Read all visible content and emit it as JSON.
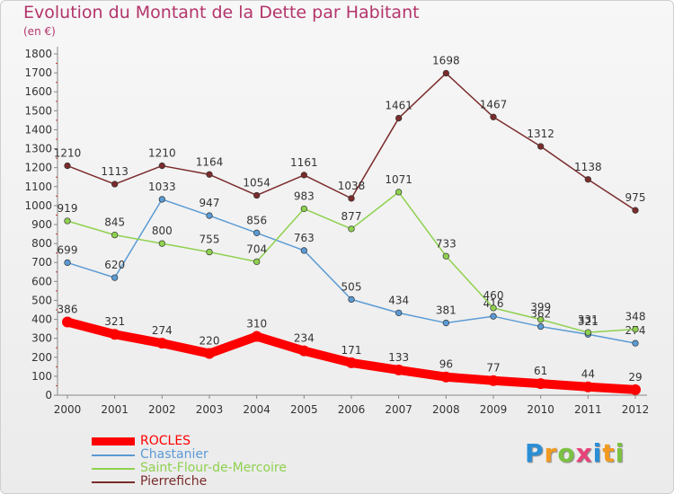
{
  "chart_data": {
    "type": "line",
    "title": "Evolution du Montant de la Dette par Habitant",
    "subtitle": "(en €)",
    "xlabel": "",
    "ylabel": "",
    "ylim": [
      0,
      1800
    ],
    "ytick_step": 100,
    "grid": false,
    "legend_position": "bottom-left",
    "x": [
      "2000",
      "2001",
      "2002",
      "2003",
      "2004",
      "2005",
      "2006",
      "2007",
      "2008",
      "2009",
      "2010",
      "2011",
      "2012"
    ],
    "series": [
      {
        "name": "ROCLES",
        "color": "#ff0000",
        "emphasis": true,
        "values": [
          386,
          321,
          274,
          220,
          310,
          234,
          171,
          133,
          96,
          77,
          61,
          44,
          29
        ]
      },
      {
        "name": "Chastanier",
        "color": "#5b9bd5",
        "values": [
          699,
          620,
          1033,
          947,
          856,
          763,
          505,
          434,
          381,
          416,
          362,
          321,
          274
        ]
      },
      {
        "name": "Saint-Flour-de-Mercoire",
        "color": "#8fd14f",
        "values": [
          919,
          845,
          800,
          755,
          704,
          983,
          877,
          1071,
          733,
          460,
          399,
          331,
          348
        ]
      },
      {
        "name": "Pierrefiche",
        "color": "#7b2b2b",
        "values": [
          1210,
          1113,
          1210,
          1164,
          1054,
          1161,
          1038,
          1461,
          1698,
          1467,
          1312,
          1138,
          975
        ]
      }
    ]
  },
  "logo": {
    "letters": [
      "P",
      "r",
      "o",
      "x",
      "i",
      "t",
      "i"
    ],
    "colors": [
      "#2a8fd6",
      "#f29a1f",
      "#7cc242",
      "#e8427a",
      "#2a8fd6",
      "#f29a1f",
      "#7cc242"
    ]
  }
}
